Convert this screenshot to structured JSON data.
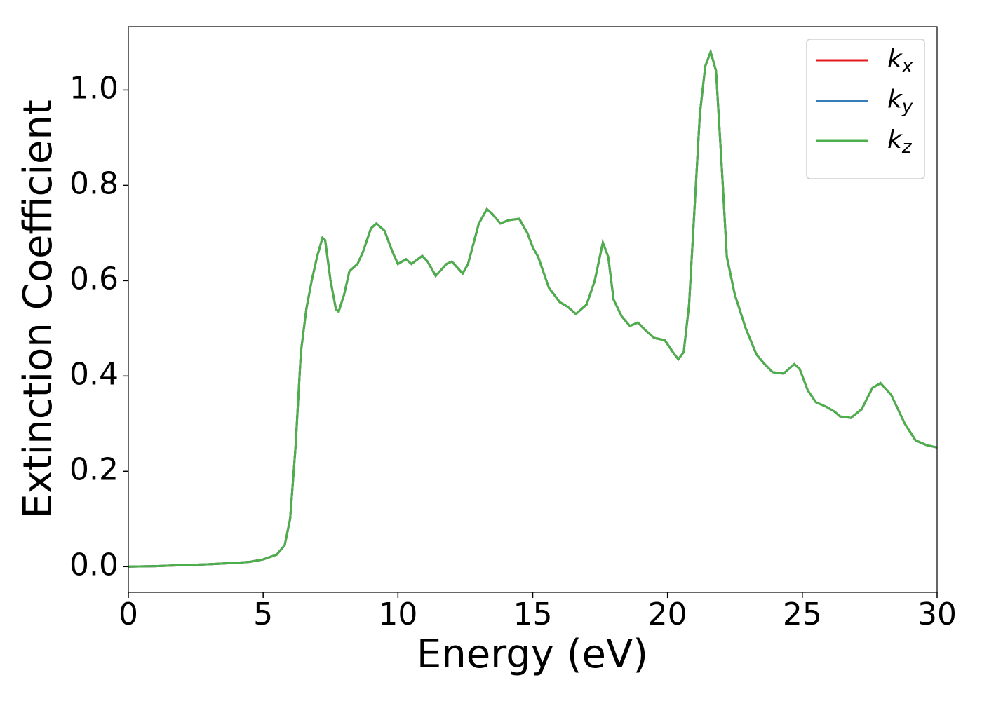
{
  "chart_data": {
    "type": "line",
    "xlabel": "Energy (eV)",
    "ylabel": "Extinction Coefficient",
    "x": [
      0,
      1,
      2,
      3,
      4,
      4.5,
      5,
      5.5,
      5.8,
      6.0,
      6.2,
      6.4,
      6.6,
      6.8,
      7.0,
      7.2,
      7.3,
      7.5,
      7.7,
      7.8,
      8.0,
      8.2,
      8.5,
      8.7,
      9.0,
      9.2,
      9.5,
      9.8,
      10.0,
      10.3,
      10.5,
      10.9,
      11.1,
      11.4,
      11.8,
      12.0,
      12.4,
      12.6,
      13.0,
      13.3,
      13.5,
      13.8,
      14.1,
      14.5,
      14.8,
      15.0,
      15.2,
      15.6,
      16.0,
      16.3,
      16.6,
      17.0,
      17.3,
      17.6,
      17.8,
      18.0,
      18.3,
      18.6,
      18.9,
      19.2,
      19.5,
      19.9,
      20.2,
      20.4,
      20.6,
      20.8,
      21.0,
      21.2,
      21.4,
      21.6,
      21.8,
      22.0,
      22.2,
      22.5,
      22.9,
      23.3,
      23.6,
      23.9,
      24.3,
      24.7,
      24.9,
      25.2,
      25.5,
      25.9,
      26.2,
      26.4,
      26.8,
      27.2,
      27.6,
      27.9,
      28.3,
      28.8,
      29.2,
      29.6,
      30
    ],
    "series": [
      {
        "name": "kx",
        "color": "#e41a1c",
        "values": [
          0.0,
          0.001,
          0.003,
          0.005,
          0.008,
          0.01,
          0.015,
          0.025,
          0.045,
          0.1,
          0.25,
          0.45,
          0.54,
          0.6,
          0.65,
          0.69,
          0.685,
          0.6,
          0.54,
          0.535,
          0.57,
          0.62,
          0.635,
          0.66,
          0.71,
          0.72,
          0.705,
          0.66,
          0.635,
          0.645,
          0.635,
          0.652,
          0.64,
          0.61,
          0.635,
          0.64,
          0.615,
          0.635,
          0.72,
          0.75,
          0.74,
          0.72,
          0.727,
          0.73,
          0.7,
          0.67,
          0.65,
          0.585,
          0.555,
          0.545,
          0.53,
          0.55,
          0.6,
          0.68,
          0.65,
          0.56,
          0.525,
          0.505,
          0.512,
          0.495,
          0.48,
          0.475,
          0.45,
          0.435,
          0.45,
          0.55,
          0.75,
          0.95,
          1.05,
          1.08,
          1.04,
          0.85,
          0.65,
          0.57,
          0.5,
          0.445,
          0.425,
          0.408,
          0.405,
          0.425,
          0.415,
          0.37,
          0.345,
          0.335,
          0.325,
          0.315,
          0.312,
          0.33,
          0.375,
          0.385,
          0.36,
          0.3,
          0.265,
          0.255,
          0.25
        ]
      },
      {
        "name": "ky",
        "color": "#377eb8",
        "values": [
          0.0,
          0.001,
          0.003,
          0.005,
          0.008,
          0.01,
          0.015,
          0.025,
          0.045,
          0.1,
          0.25,
          0.45,
          0.54,
          0.6,
          0.65,
          0.69,
          0.685,
          0.6,
          0.54,
          0.535,
          0.57,
          0.62,
          0.635,
          0.66,
          0.71,
          0.72,
          0.705,
          0.66,
          0.635,
          0.645,
          0.635,
          0.652,
          0.64,
          0.61,
          0.635,
          0.64,
          0.615,
          0.635,
          0.72,
          0.75,
          0.74,
          0.72,
          0.727,
          0.73,
          0.7,
          0.67,
          0.65,
          0.585,
          0.555,
          0.545,
          0.53,
          0.55,
          0.6,
          0.68,
          0.65,
          0.56,
          0.525,
          0.505,
          0.512,
          0.495,
          0.48,
          0.475,
          0.45,
          0.435,
          0.45,
          0.55,
          0.75,
          0.95,
          1.05,
          1.08,
          1.04,
          0.85,
          0.65,
          0.57,
          0.5,
          0.445,
          0.425,
          0.408,
          0.405,
          0.425,
          0.415,
          0.37,
          0.345,
          0.335,
          0.325,
          0.315,
          0.312,
          0.33,
          0.375,
          0.385,
          0.36,
          0.3,
          0.265,
          0.255,
          0.25
        ]
      },
      {
        "name": "kz",
        "color": "#4daf4a",
        "values": [
          0.0,
          0.001,
          0.003,
          0.005,
          0.008,
          0.01,
          0.015,
          0.025,
          0.045,
          0.1,
          0.25,
          0.45,
          0.54,
          0.6,
          0.65,
          0.69,
          0.685,
          0.6,
          0.54,
          0.535,
          0.57,
          0.62,
          0.635,
          0.66,
          0.71,
          0.72,
          0.705,
          0.66,
          0.635,
          0.645,
          0.635,
          0.652,
          0.64,
          0.61,
          0.635,
          0.64,
          0.615,
          0.635,
          0.72,
          0.75,
          0.74,
          0.72,
          0.727,
          0.73,
          0.7,
          0.67,
          0.65,
          0.585,
          0.555,
          0.545,
          0.53,
          0.55,
          0.6,
          0.68,
          0.65,
          0.56,
          0.525,
          0.505,
          0.512,
          0.495,
          0.48,
          0.475,
          0.45,
          0.435,
          0.45,
          0.55,
          0.75,
          0.95,
          1.05,
          1.08,
          1.04,
          0.85,
          0.65,
          0.57,
          0.5,
          0.445,
          0.425,
          0.408,
          0.405,
          0.425,
          0.415,
          0.37,
          0.345,
          0.335,
          0.325,
          0.315,
          0.312,
          0.33,
          0.375,
          0.385,
          0.36,
          0.3,
          0.265,
          0.255,
          0.25
        ]
      }
    ],
    "xlim": [
      0,
      30
    ],
    "xticks": [
      0,
      5,
      10,
      15,
      20,
      25,
      30
    ],
    "ylim": [
      -0.054,
      1.133
    ],
    "yticks": [
      {
        "value": 0,
        "label": "0.0"
      },
      0.2,
      0.4,
      0.6,
      0.8,
      {
        "value": 1,
        "label": "1.0"
      }
    ],
    "legend": "upper right"
  }
}
